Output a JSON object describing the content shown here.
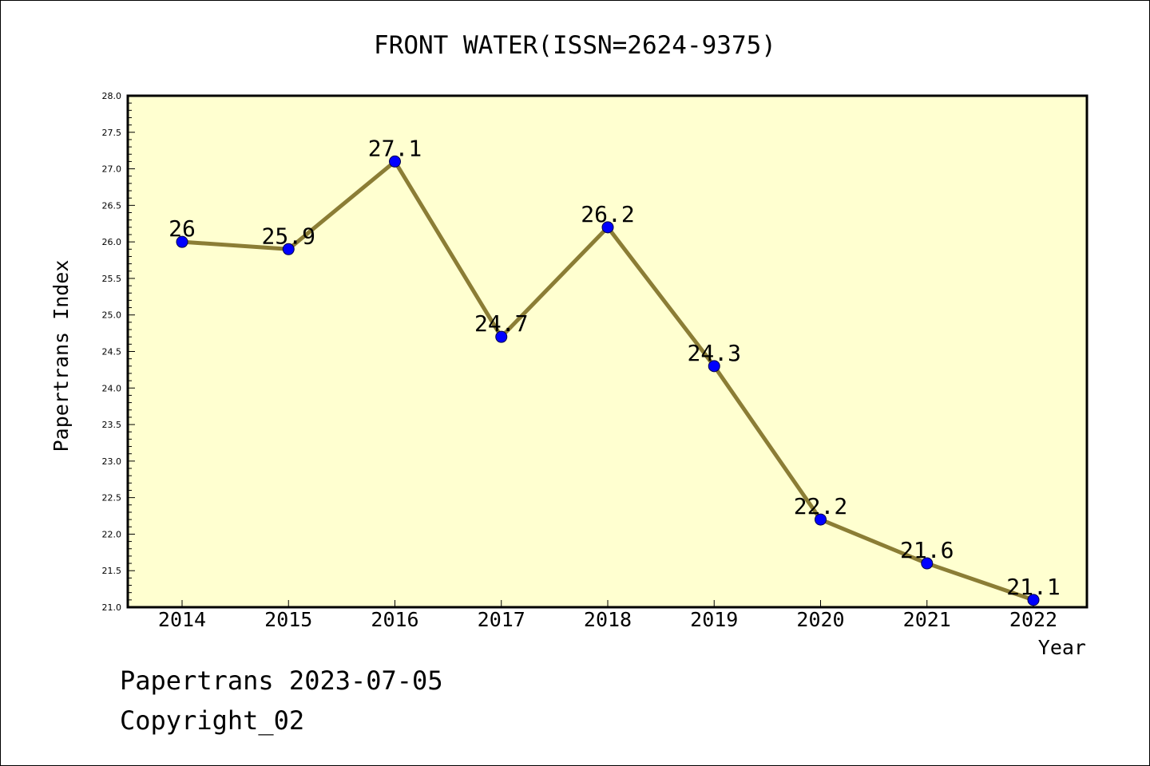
{
  "chart_data": {
    "type": "line",
    "title": "FRONT WATER(ISSN=2624-9375)",
    "xlabel": "Year",
    "ylabel": "Papertrans Index",
    "x": [
      "2014",
      "2015",
      "2016",
      "2017",
      "2018",
      "2019",
      "2020",
      "2021",
      "2022"
    ],
    "series": [
      {
        "values": [
          26,
          25.9,
          27.1,
          24.7,
          26.2,
          24.3,
          22.2,
          21.6,
          21.1
        ],
        "labels": [
          "26",
          "25.9",
          "27.1",
          "24.7",
          "26.2",
          "24.3",
          "22.2",
          "21.6",
          "21.1"
        ]
      }
    ],
    "ylim": [
      21.0,
      28.0
    ],
    "yticks": [
      "21.0",
      "21.5",
      "22.0",
      "22.5",
      "23.0",
      "23.5",
      "24.0",
      "24.5",
      "25.0",
      "25.5",
      "26.0",
      "26.5",
      "27.0",
      "27.5",
      "28.0"
    ],
    "grid": false,
    "legend": "none",
    "colors": {
      "line": "#8b7d35",
      "marker": "#0000ff",
      "plot_background": "#ffffd0"
    }
  },
  "footer": {
    "date_line": "Papertrans 2023-07-05",
    "copyright": "Copyright_02"
  }
}
